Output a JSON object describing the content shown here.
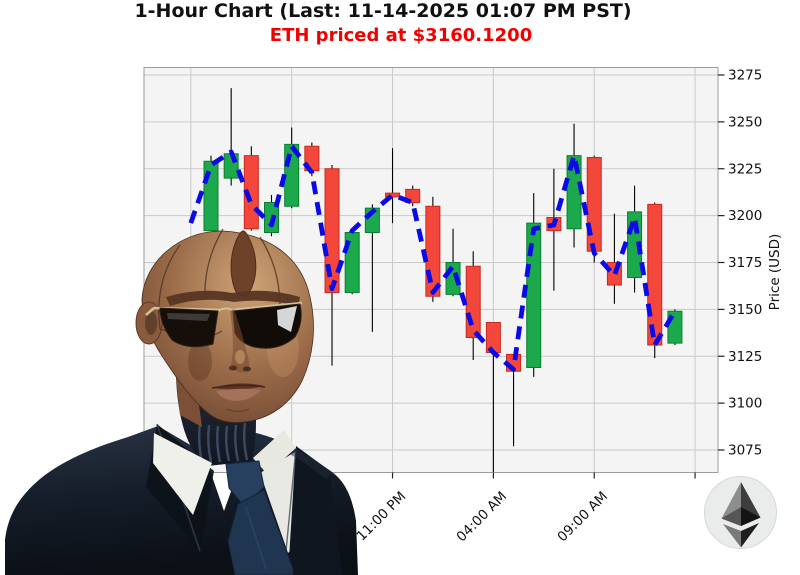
{
  "header": {
    "title": "1-Hour Chart (Last: 11-14-2025 01:07 PM PST)",
    "subtitle": "ETH priced at $3160.1200"
  },
  "y_axis": {
    "label": "Price (USD)",
    "ticks": [
      3275,
      3250,
      3225,
      3200,
      3175,
      3150,
      3125,
      3100,
      3075
    ]
  },
  "x_axis": {
    "tick_labels": [
      "11:00 PM",
      "04:00 AM",
      "09:00 AM"
    ],
    "label_indices": [
      9,
      14,
      19
    ],
    "tick_indices": [
      9,
      14,
      19,
      24
    ],
    "gridline_indices": [
      -1,
      4,
      9,
      14,
      19,
      24
    ]
  },
  "chart_data": {
    "type": "candlestick",
    "title": "1-Hour Chart (Last: 11-14-2025 01:07 PM PST)",
    "subtitle": "ETH priced at $3160.1200",
    "symbol": "ETH",
    "interval": "1-hour",
    "last_price": 3160.12,
    "ylabel": "Price (USD)",
    "ylim": [
      3063,
      3279
    ],
    "x_tick_labels": [
      "11:00 PM",
      "04:00 AM",
      "09:00 AM"
    ],
    "ohlc_order": [
      "open",
      "high",
      "low",
      "close"
    ],
    "candles": [
      [
        3192,
        3232,
        3192,
        3229
      ],
      [
        3220,
        3268,
        3216,
        3233
      ],
      [
        3232,
        3237,
        3192,
        3193
      ],
      [
        3191,
        3211,
        3189,
        3207
      ],
      [
        3205,
        3247,
        3204,
        3238
      ],
      [
        3237,
        3239,
        3221,
        3224
      ],
      [
        3225,
        3227,
        3120,
        3159
      ],
      [
        3159,
        3193,
        3158,
        3191
      ],
      [
        3191,
        3206,
        3138,
        3204
      ],
      [
        3212,
        3236,
        3196,
        3210
      ],
      [
        3214,
        3216,
        3205,
        3207
      ],
      [
        3205,
        3210,
        3154,
        3157
      ],
      [
        3158,
        3193,
        3157,
        3175
      ],
      [
        3173,
        3181,
        3123,
        3135
      ],
      [
        3143,
        3143,
        3063,
        3127
      ],
      [
        3126,
        3126,
        3077,
        3117
      ],
      [
        3119,
        3212,
        3114,
        3196
      ],
      [
        3199,
        3225,
        3160,
        3192
      ],
      [
        3193,
        3249,
        3183,
        3232
      ],
      [
        3231,
        3232,
        3175,
        3181
      ],
      [
        3175,
        3201,
        3153,
        3163
      ],
      [
        3167,
        3216,
        3159,
        3202
      ],
      [
        3206,
        3207,
        3124,
        3131
      ],
      [
        3132,
        3150,
        3131,
        3149
      ]
    ],
    "overlay_line": {
      "name": "moving-average",
      "style": "dashed",
      "lead_value": 3196,
      "values": [
        3227,
        3234,
        3206,
        3195,
        3237,
        3223,
        3161,
        3192,
        3202,
        3211,
        3207,
        3159,
        3173,
        3139,
        3127,
        3118,
        3193,
        3195,
        3232,
        3180,
        3168,
        3199,
        3131,
        3149
      ]
    }
  },
  "colors": {
    "up_fill": "#1ca94c",
    "up_edge": "#0c7c33",
    "down_fill": "#f4473c",
    "down_edge": "#c8291f",
    "wick": "#000000",
    "grid": "#c9c9c9",
    "plot_bg": "#f4f4f4",
    "spine": "#9b9b9b",
    "tick": "#222222",
    "text": "#111111",
    "sma": "#0a0ae8",
    "subtitle": "#f20000"
  },
  "logo": {
    "name": "ethereum-logo"
  },
  "overlay_figure": {
    "name": "android-agent"
  }
}
